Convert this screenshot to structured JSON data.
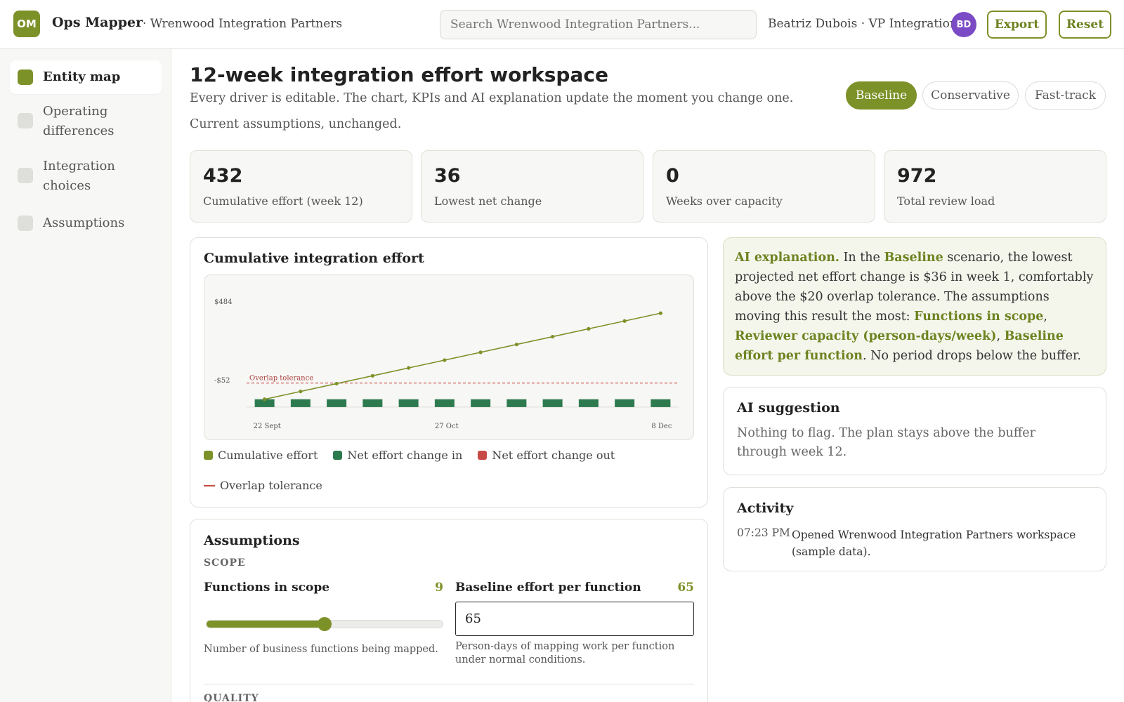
{
  "header": {
    "logo": "OM",
    "app_name": "Ops Mapper",
    "org_name": "· Wrenwood Integration Partners",
    "search_placeholder": "Search Wrenwood Integration Partners...",
    "user": "Beatriz Dubois · VP Integration",
    "avatar": "BD",
    "export_label": "Export",
    "reset_label": "Reset"
  },
  "sidebar": {
    "items": [
      {
        "label": "Entity map",
        "active": true
      },
      {
        "label": "Operating differences",
        "active": false
      },
      {
        "label": "Integration choices",
        "active": false
      },
      {
        "label": "Assumptions",
        "active": false
      }
    ]
  },
  "page": {
    "title": "12-week integration effort workspace",
    "subtitle": "Every driver is editable. The chart, KPIs and AI explanation update the moment you change one.",
    "status": "Current assumptions, unchanged."
  },
  "scenarios": {
    "items": [
      "Baseline",
      "Conservative",
      "Fast-track"
    ],
    "active": "Baseline"
  },
  "kpis": [
    {
      "value": "432",
      "label": "Cumulative effort (week 12)"
    },
    {
      "value": "36",
      "label": "Lowest net change"
    },
    {
      "value": "0",
      "label": "Weeks over capacity"
    },
    {
      "value": "972",
      "label": "Total review load"
    }
  ],
  "chart_card": {
    "title": "Cumulative integration effort",
    "legend": [
      "Cumulative effort",
      "Net effort change in",
      "Net effort change out",
      "Overlap tolerance"
    ]
  },
  "chart_data": {
    "type": "bar",
    "y_tick_labels": [
      "$484",
      "-$52"
    ],
    "x_tick_labels": [
      "22 Sept",
      "27 Oct",
      "8 Dec"
    ],
    "threshold_label": "Overlap tolerance",
    "series": [
      {
        "name": "Cumulative effort",
        "type": "line",
        "values": [
          36,
          72,
          108,
          144,
          180,
          216,
          252,
          288,
          324,
          360,
          396,
          432
        ]
      },
      {
        "name": "Net effort change in",
        "type": "bar",
        "values": [
          36,
          36,
          36,
          36,
          36,
          36,
          36,
          36,
          36,
          36,
          36,
          36
        ]
      },
      {
        "name": "Net effort change out",
        "type": "bar",
        "values": [
          0,
          0,
          0,
          0,
          0,
          0,
          0,
          0,
          0,
          0,
          0,
          0
        ]
      }
    ],
    "threshold": 20,
    "ylim": [
      -52,
      484
    ],
    "colors": {
      "line": "#7d9129",
      "bar_in": "#2e7a4f",
      "bar_out": "#c84a45",
      "threshold": "#c84a45"
    }
  },
  "ai_explanation": {
    "lead": "AI explanation.",
    "t1": " In the ",
    "scenario": "Baseline",
    "t2": " scenario, the lowest projected net effort change is $36 in week 1, comfortably above the $20 overlap tolerance. The assumptions moving this result the most: ",
    "d1": "Functions in scope",
    "sep1": ", ",
    "d2": "Reviewer capacity (person-days/week)",
    "sep2": ", ",
    "d3": "Baseline effort per function",
    "t3": ". No period drops below the buffer."
  },
  "ai_suggestion": {
    "title": "AI suggestion",
    "text": "Nothing to flag. The plan stays above the buffer through week 12."
  },
  "activity": {
    "title": "Activity",
    "time": "07:23 PM",
    "text": "Opened Wrenwood Integration Partners workspace (sample data)."
  },
  "assumptions": {
    "title": "Assumptions",
    "section_scope": "SCOPE",
    "functions_label": "Functions in scope",
    "functions_value": "9",
    "functions_fill": 0.5,
    "functions_help": "Number of business functions being mapped.",
    "baseline_label": "Baseline effort per function",
    "baseline_value": "65",
    "baseline_input": "65",
    "baseline_help": "Person-days of mapping work per function under normal conditions.",
    "section_quality": "QUALITY"
  }
}
